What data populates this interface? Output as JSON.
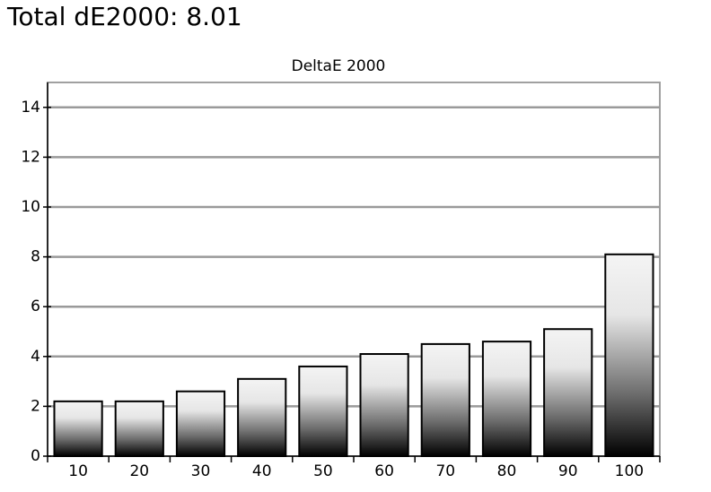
{
  "header": {
    "title": "Total dE2000: 8.01"
  },
  "chart_data": {
    "type": "bar",
    "title": "DeltaE 2000",
    "categories": [
      "10",
      "20",
      "30",
      "40",
      "50",
      "60",
      "70",
      "80",
      "90",
      "100"
    ],
    "values": [
      2.2,
      2.2,
      2.6,
      3.1,
      3.6,
      4.1,
      4.5,
      4.6,
      5.1,
      8.1
    ],
    "ylim": [
      0,
      15
    ],
    "yticks": [
      0,
      2,
      4,
      6,
      8,
      10,
      12,
      14
    ],
    "grid": true
  }
}
